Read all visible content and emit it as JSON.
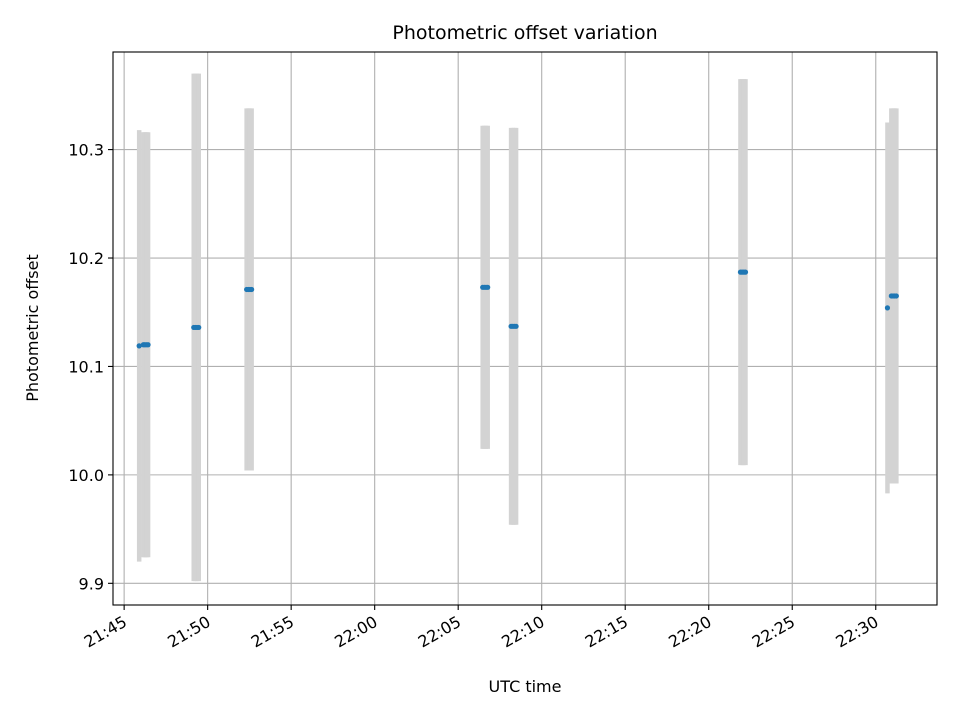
{
  "chart_data": {
    "type": "scatter",
    "title": "Photometric offset variation",
    "xlabel": "UTC time",
    "ylabel": "Photometric offset",
    "x_ticks": [
      "21:45",
      "21:50",
      "21:55",
      "22:00",
      "22:05",
      "22:10",
      "22:15",
      "22:20",
      "22:25",
      "22:30"
    ],
    "y_ticks": [
      "9.9",
      "10.0",
      "10.1",
      "10.2",
      "10.3"
    ],
    "xlim": [
      "21:44:20",
      "22:33:40"
    ],
    "ylim": [
      9.88,
      10.39
    ],
    "grid": true,
    "marker_color": "#1f77b4",
    "errorbar_color": "#d3d3d3",
    "points": [
      {
        "time": "21:45:54",
        "value": 10.119,
        "err": 0.199
      },
      {
        "time": "21:46:09",
        "value": 10.12,
        "err": 0.196
      },
      {
        "time": "21:46:14",
        "value": 10.12,
        "err": 0.196
      },
      {
        "time": "21:46:20",
        "value": 10.12,
        "err": 0.196
      },
      {
        "time": "21:46:26",
        "value": 10.12,
        "err": 0.196
      },
      {
        "time": "21:49:10",
        "value": 10.136,
        "err": 0.234
      },
      {
        "time": "21:49:16",
        "value": 10.136,
        "err": 0.234
      },
      {
        "time": "21:49:22",
        "value": 10.136,
        "err": 0.234
      },
      {
        "time": "21:49:28",
        "value": 10.136,
        "err": 0.234
      },
      {
        "time": "21:52:20",
        "value": 10.171,
        "err": 0.167
      },
      {
        "time": "21:52:26",
        "value": 10.171,
        "err": 0.167
      },
      {
        "time": "21:52:32",
        "value": 10.171,
        "err": 0.167
      },
      {
        "time": "21:52:38",
        "value": 10.171,
        "err": 0.167
      },
      {
        "time": "22:06:28",
        "value": 10.173,
        "err": 0.149
      },
      {
        "time": "22:06:34",
        "value": 10.173,
        "err": 0.149
      },
      {
        "time": "22:06:40",
        "value": 10.173,
        "err": 0.149
      },
      {
        "time": "22:06:46",
        "value": 10.173,
        "err": 0.149
      },
      {
        "time": "22:08:10",
        "value": 10.137,
        "err": 0.183
      },
      {
        "time": "22:08:16",
        "value": 10.137,
        "err": 0.183
      },
      {
        "time": "22:08:22",
        "value": 10.137,
        "err": 0.183
      },
      {
        "time": "22:08:28",
        "value": 10.137,
        "err": 0.183
      },
      {
        "time": "22:21:54",
        "value": 10.187,
        "err": 0.178
      },
      {
        "time": "22:22:00",
        "value": 10.187,
        "err": 0.178
      },
      {
        "time": "22:22:06",
        "value": 10.187,
        "err": 0.178
      },
      {
        "time": "22:22:12",
        "value": 10.187,
        "err": 0.178
      },
      {
        "time": "22:30:42",
        "value": 10.154,
        "err": 0.171
      },
      {
        "time": "22:30:56",
        "value": 10.165,
        "err": 0.173
      },
      {
        "time": "22:31:02",
        "value": 10.165,
        "err": 0.173
      },
      {
        "time": "22:31:08",
        "value": 10.165,
        "err": 0.173
      },
      {
        "time": "22:31:14",
        "value": 10.165,
        "err": 0.173
      }
    ]
  }
}
